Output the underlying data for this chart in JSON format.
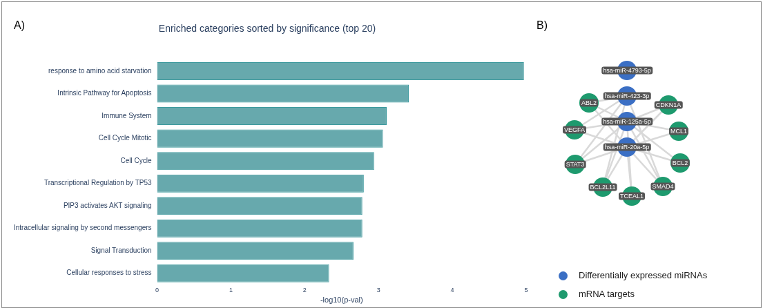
{
  "chart_data": [
    {
      "type": "bar",
      "orientation": "horizontal",
      "title": "Enriched categories sorted by significance (top 20)",
      "xlabel": "-log10(p-val)",
      "annotations": [
        "A)"
      ],
      "categories": [
        "response to amino acid starvation",
        "Intrinsic Pathway for Apoptosis",
        "Immune System",
        "Cell Cycle Mitotic",
        "Cell Cycle",
        "Transcriptional Regulation by TP53",
        "PIP3 activates AKT signaling",
        "Intracellular signaling by second messengers",
        "Signal Transduction",
        "Cellular responses to stress"
      ],
      "values": [
        4.97,
        3.41,
        3.11,
        3.06,
        2.94,
        2.8,
        2.78,
        2.78,
        2.66,
        2.33
      ],
      "color": "#67a9ad",
      "xlim": [
        0,
        5
      ],
      "xticks": [
        0,
        1,
        2,
        3,
        4,
        5
      ],
      "grid": false,
      "legend": false
    },
    {
      "type": "other",
      "title": "B)",
      "categories": [
        "hsa-miR-4793-5p",
        "hsa-miR-423-3p",
        "hsa-miR-125a-5p",
        "hsa-miR-20a-5p",
        "ABL2",
        "CDKN1A",
        "VEGFA",
        "MCL1",
        "STAT3",
        "BCL2",
        "BCL2L11",
        "TCEAL1",
        "SMAD4"
      ],
      "colors": [
        "#3b6fc4",
        "#3b6fc4",
        "#3b6fc4",
        "#3b6fc4",
        "#1e9a6e",
        "#1e9a6e",
        "#1e9a6e",
        "#1e9a6e",
        "#1e9a6e",
        "#1e9a6e",
        "#1e9a6e",
        "#1e9a6e",
        "#1e9a6e"
      ],
      "annotations": [
        "Differentially expressed miRNAs",
        "mRNA targets"
      ]
    }
  ]
}
